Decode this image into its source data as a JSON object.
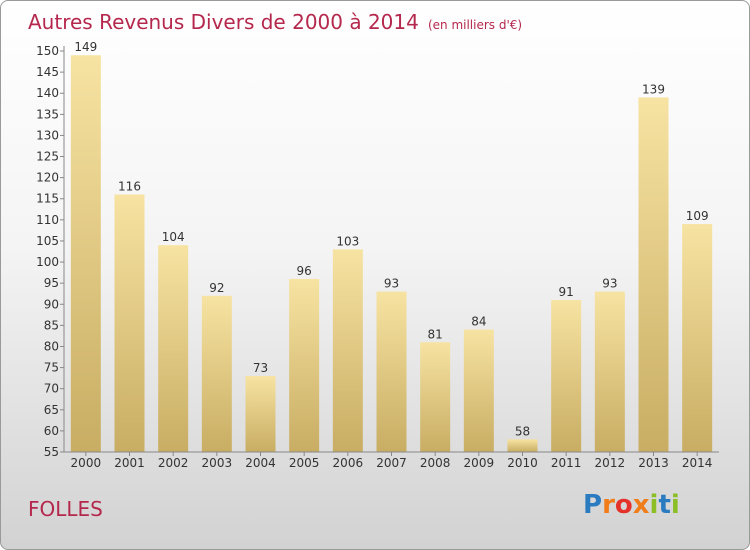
{
  "title": "Autres Revenus Divers de 2000 à 2014",
  "subtitle": "(en milliers d'€)",
  "town": "FOLLES",
  "logo": {
    "letters": [
      "P",
      "r",
      "o",
      "x",
      "i",
      "t",
      "i"
    ],
    "colors": [
      "#2a7bc0",
      "#f07c1a",
      "#e4322b",
      "#f07c1a",
      "#8cbf26",
      "#2a7bc0",
      "#8cbf26"
    ]
  },
  "colors": {
    "title": "#b5284d",
    "bar_light": "#f7e3a2",
    "bar_dark": "#c8ad63"
  },
  "chart_data": {
    "type": "bar",
    "categories": [
      "2000",
      "2001",
      "2002",
      "2003",
      "2004",
      "2005",
      "2006",
      "2007",
      "2008",
      "2009",
      "2010",
      "2011",
      "2012",
      "2013",
      "2014"
    ],
    "values": [
      149,
      116,
      104,
      92,
      73,
      96,
      103,
      93,
      81,
      84,
      58,
      91,
      93,
      139,
      109
    ],
    "ylim": [
      55,
      150
    ],
    "yticks": [
      55,
      60,
      65,
      70,
      75,
      80,
      85,
      90,
      95,
      100,
      105,
      110,
      115,
      120,
      125,
      130,
      135,
      140,
      145,
      150
    ],
    "title": "Autres Revenus Divers de 2000 à 2014",
    "xlabel": "",
    "ylabel": "",
    "grid": false,
    "data_labels": true
  }
}
